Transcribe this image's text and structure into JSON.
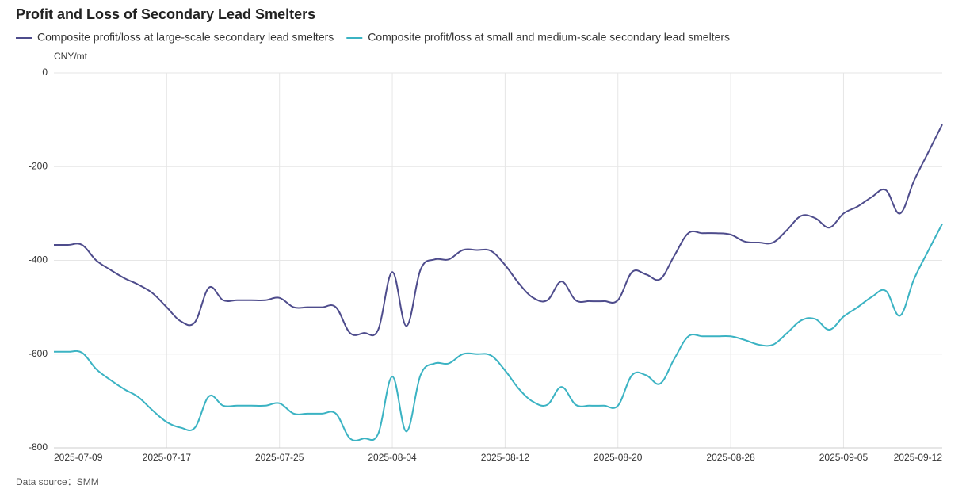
{
  "chart_data": {
    "type": "line",
    "title": "Profit and Loss of Secondary Lead Smelters",
    "y_label": "CNY/mt",
    "source": "Data source：SMM",
    "categories": [
      "2025-07-09",
      null,
      null,
      null,
      null,
      null,
      null,
      null,
      "2025-07-17",
      null,
      null,
      null,
      null,
      null,
      null,
      null,
      "2025-07-25",
      null,
      null,
      null,
      null,
      null,
      null,
      null,
      "2025-08-04",
      null,
      null,
      null,
      null,
      null,
      null,
      null,
      "2025-08-12",
      null,
      null,
      null,
      null,
      null,
      null,
      null,
      "2025-08-20",
      null,
      null,
      null,
      null,
      null,
      null,
      null,
      "2025-08-28",
      null,
      null,
      null,
      null,
      null,
      null,
      null,
      "2025-09-05",
      null,
      null,
      null,
      null,
      null,
      null,
      "2025-09-12"
    ],
    "series": [
      {
        "name": "Composite profit/loss at large-scale secondary lead smelters",
        "color": "#4e4c8c",
        "values": [
          -367,
          -367,
          -367,
          -400,
          -420,
          -438,
          -452,
          -470,
          -500,
          -530,
          -532,
          -458,
          -485,
          -485,
          -485,
          -485,
          -480,
          -500,
          -500,
          -500,
          -500,
          -555,
          -555,
          -548,
          -425,
          -540,
          -420,
          -398,
          -398,
          -378,
          -378,
          -380,
          -410,
          -450,
          -480,
          -485,
          -445,
          -485,
          -487,
          -487,
          -485,
          -425,
          -430,
          -440,
          -390,
          -342,
          -342,
          -342,
          -345,
          -360,
          -362,
          -362,
          -335,
          -305,
          -310,
          -330,
          -300,
          -285,
          -265,
          -250,
          -300,
          -230,
          -170,
          -110
        ]
      },
      {
        "name": "Composite profit/loss at small and medium-scale secondary lead smelters",
        "color": "#3bb3c3",
        "values": [
          -595,
          -595,
          -597,
          -632,
          -655,
          -675,
          -692,
          -720,
          -745,
          -757,
          -757,
          -690,
          -710,
          -710,
          -710,
          -710,
          -705,
          -727,
          -727,
          -727,
          -727,
          -780,
          -780,
          -770,
          -648,
          -765,
          -645,
          -620,
          -620,
          -600,
          -600,
          -603,
          -635,
          -675,
          -702,
          -708,
          -670,
          -708,
          -710,
          -710,
          -710,
          -645,
          -645,
          -663,
          -610,
          -562,
          -562,
          -562,
          -562,
          -570,
          -580,
          -580,
          -555,
          -528,
          -525,
          -548,
          -520,
          -500,
          -478,
          -465,
          -518,
          -440,
          -380,
          -322
        ]
      }
    ],
    "ylim": [
      -800,
      0
    ],
    "yticks": [
      0,
      -200,
      -400,
      -600,
      -800
    ],
    "grid": true
  }
}
